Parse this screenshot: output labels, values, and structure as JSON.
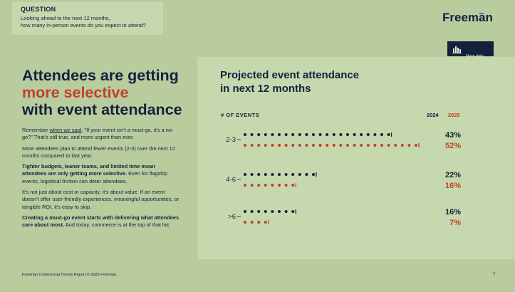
{
  "question": {
    "title": "QUESTION",
    "text": "Looking ahead to the next 12 months,\nhow many in-person events do you expect to attend?"
  },
  "brand": {
    "logo": "Freeman",
    "accent_color": "#1f8a9e"
  },
  "appendix_badge": {
    "text": "More data\nin appendix",
    "icon": "bar-chart-icon"
  },
  "headline": {
    "line1": "Attendees are getting",
    "line2": "more selective",
    "line3": "with event attendance"
  },
  "body": {
    "p1_pre": "Remember ",
    "p1_link": "when we said",
    "p1_post": ", \"If your event isn't a must-go, it's a no-go?\" That's still true, and more urgent than ever.",
    "p2": "More attendees plan to attend fewer events (2-3) over the next 12 months compared to last year.",
    "p3_bold": "Tighter budgets, leaner teams, and limited time mean attendees are only getting more selective.",
    "p3_rest": " Even for flagship events, logistical friction can deter attendees.",
    "p4": "It's not just about cost or capacity, it's about value. If an event doesn't offer user-friendly experiences, meaningful opportunities, or tangible ROI, it's easy to skip.",
    "p5_bold": "Creating a must-go event starts with delivering what attendees care about most.",
    "p5_rest": " And today, commerce is at the top of that list."
  },
  "chart_data": {
    "type": "dot-bar",
    "title": "Projected event attendance in next 12 months",
    "title_line1": "Projected event attendance",
    "title_line2": "in next 12 months",
    "category_header": "# OF EVENTS",
    "categories": [
      "2-3",
      "4-6",
      ">6"
    ],
    "series": [
      {
        "name": "2024",
        "color": "#14213d",
        "values": [
          43,
          22,
          16
        ],
        "labels": [
          "43%",
          "22%",
          "16%"
        ]
      },
      {
        "name": "2025",
        "color": "#c2412d",
        "values": [
          52,
          16,
          7
        ],
        "labels": [
          "52%",
          "16%",
          "7%"
        ]
      }
    ],
    "unit": "%",
    "legend_position": "top-right",
    "grid": false
  },
  "footer": "Freeman Commercial Trends Report © 2025 Freeman.",
  "page_number": "7"
}
